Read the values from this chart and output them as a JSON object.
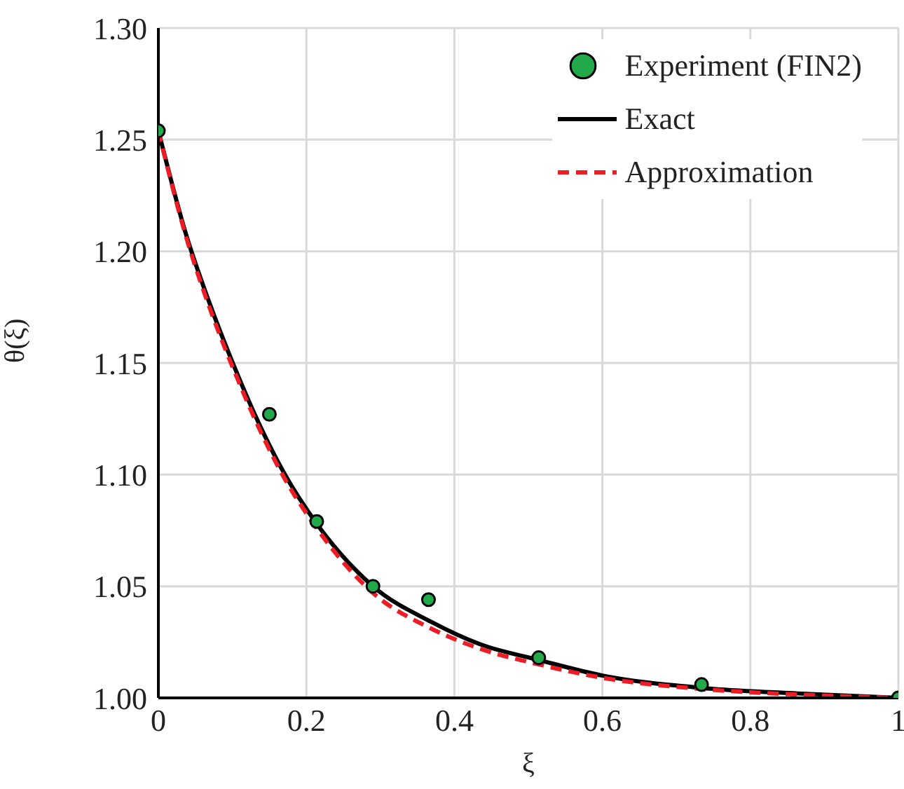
{
  "chart_data": {
    "type": "line",
    "xlabel": "ξ",
    "ylabel": "θ(ξ)",
    "xlim": [
      0,
      1
    ],
    "ylim": [
      1.0,
      1.3
    ],
    "xticks": [
      0,
      0.2,
      0.4,
      0.6,
      0.8,
      1
    ],
    "yticks": [
      {
        "value": 1.0,
        "label": "1.00"
      },
      {
        "value": 1.05,
        "label": "1.05"
      },
      {
        "value": 1.1,
        "label": "1.10"
      },
      {
        "value": 1.15,
        "label": "1.15"
      },
      {
        "value": 1.2,
        "label": "1.20"
      },
      {
        "value": 1.25,
        "label": "1.25"
      },
      {
        "value": 1.3,
        "label": "1.30"
      }
    ],
    "grid": true,
    "legend": "top right",
    "series": [
      {
        "name": "Experiment (FIN2)",
        "type": "scatter",
        "marker": "circle",
        "color": "#22aa4a",
        "x": [
          0,
          0.15,
          0.214,
          0.29,
          0.365,
          0.514,
          0.734,
          1
        ],
        "values": [
          1.254,
          1.127,
          1.079,
          1.05,
          1.044,
          1.018,
          1.006,
          1.0
        ]
      },
      {
        "name": "Exact",
        "type": "line",
        "line_style": "solid",
        "color": "#000000",
        "x": [
          0,
          0.037,
          0.07,
          0.103,
          0.14,
          0.171,
          0.214,
          0.29,
          0.369,
          0.435,
          0.514,
          0.6,
          0.734,
          0.864,
          1
        ],
        "values": [
          1.254,
          1.208,
          1.176,
          1.148,
          1.12,
          1.1,
          1.078,
          1.05,
          1.034,
          1.024,
          1.017,
          1.01,
          1.0045,
          1.002,
          1.0
        ]
      },
      {
        "name": "Approximation",
        "type": "line",
        "line_style": "dashed",
        "color": "#ee1c25",
        "x": [
          0,
          0.037,
          0.07,
          0.103,
          0.14,
          0.171,
          0.214,
          0.29,
          0.369,
          0.435,
          0.514,
          0.6,
          0.734,
          0.864,
          1
        ],
        "values": [
          1.254,
          1.207,
          1.174,
          1.146,
          1.118,
          1.098,
          1.076,
          1.047,
          1.031,
          1.022,
          1.015,
          1.009,
          1.004,
          1.0015,
          1.0
        ]
      }
    ]
  }
}
